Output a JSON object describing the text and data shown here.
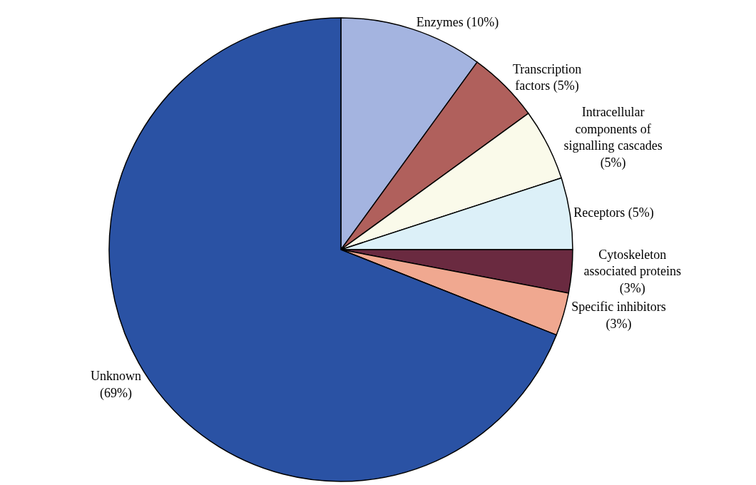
{
  "chart_data": {
    "type": "pie",
    "categories": [
      "Enzymes (10%)",
      "Transcription\nfactors (5%)",
      "Intracellular\ncomponents of\nsignalling cascades\n(5%)",
      "Receptors (5%)",
      "Cytoskeleton\nassociated proteins\n(3%)",
      "Specific inhibitors\n(3%)",
      "Unknown\n(69%)"
    ],
    "values": [
      10,
      5,
      5,
      5,
      3,
      3,
      69
    ],
    "colors": [
      "#a4b4e0",
      "#b0605c",
      "#fafaea",
      "#dcf0f8",
      "#6a2a40",
      "#f0a890",
      "#2a52a4"
    ]
  }
}
